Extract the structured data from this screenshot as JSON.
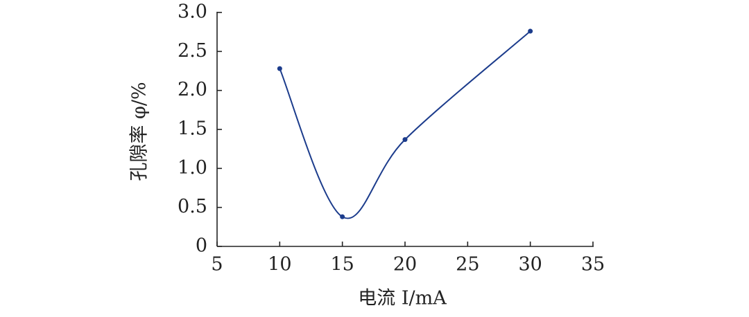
{
  "chart_data": {
    "type": "line",
    "x_label": "电流 I/mA",
    "y_label": "孔隙率 φ/%",
    "x": [
      10,
      15,
      20,
      30
    ],
    "series": [
      {
        "color": "#1c3c8c",
        "values": [
          2.28,
          0.38,
          1.37,
          2.76
        ]
      }
    ],
    "smooth": true,
    "xlim": [
      5,
      35
    ],
    "xticks": [
      5,
      10,
      15,
      20,
      25,
      30,
      35
    ],
    "ylim": [
      0,
      3
    ],
    "yticks": [
      0,
      0.5,
      {
        "value": 1,
        "label": "1.0"
      },
      1.5,
      {
        "value": 2,
        "label": "2.0"
      },
      2.5,
      {
        "value": 3,
        "label": "3.0"
      }
    ]
  }
}
